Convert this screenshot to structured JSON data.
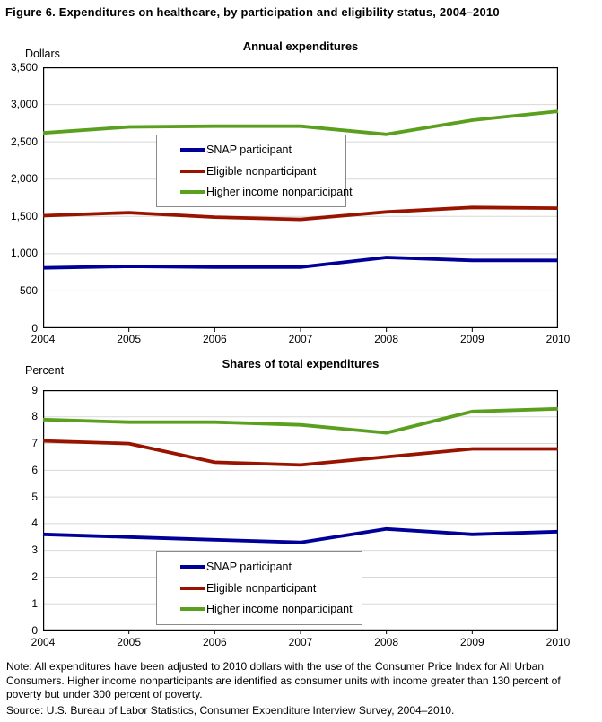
{
  "page": {
    "background": "#FFFFFF",
    "text_color": "#000000"
  },
  "figure_title": "Figure 6. Expenditures on healthcare, by participation and eligibility status, 2004–2010",
  "note": "Note: All expenditures have been adjusted to 2010 dollars with the use of the Consumer Price Index for All Urban Consumers. Higher income nonparticipants are identified as consumer units with income greater than 130 percent of poverty but under 300 percent of poverty.",
  "source": "Source: U.S. Bureau of Labor Statistics, Consumer Expenditure Interview Survey, 2004–2010.",
  "chart_data": [
    {
      "type": "line",
      "title": "Annual expenditures",
      "unit_label": "Dollars",
      "categories": [
        "2004",
        "2005",
        "2006",
        "2007",
        "2008",
        "2009",
        "2010"
      ],
      "ylim": [
        0,
        3500
      ],
      "grid": true,
      "legend_position": "inside-center",
      "axis_color": "#000000",
      "grid_color": "#D8D8D8",
      "yticks": [
        {
          "v": 0,
          "label": "0"
        },
        {
          "v": 500,
          "label": "500"
        },
        {
          "v": 1000,
          "label": "1,000"
        },
        {
          "v": 1500,
          "label": "1,500"
        },
        {
          "v": 2000,
          "label": "2,000"
        },
        {
          "v": 2500,
          "label": "2,500"
        },
        {
          "v": 3000,
          "label": "3,000"
        },
        {
          "v": 3500,
          "label": "3,500"
        }
      ],
      "series": [
        {
          "name": "SNAP participant",
          "color": "#000099",
          "values": [
            810,
            830,
            820,
            820,
            950,
            910,
            910
          ]
        },
        {
          "name": "Eligible nonparticipant",
          "color": "#991400",
          "values": [
            1510,
            1550,
            1490,
            1460,
            1560,
            1620,
            1610
          ]
        },
        {
          "name": "Higher income nonparticipant",
          "color": "#5AA01E",
          "values": [
            2620,
            2700,
            2710,
            2710,
            2600,
            2790,
            2910
          ]
        }
      ]
    },
    {
      "type": "line",
      "title": "Shares of total expenditures",
      "unit_label": "Percent",
      "categories": [
        "2004",
        "2005",
        "2006",
        "2007",
        "2008",
        "2009",
        "2010"
      ],
      "ylim": [
        0,
        9
      ],
      "grid": true,
      "legend_position": "inside-bottom",
      "axis_color": "#000000",
      "grid_color": "#D8D8D8",
      "yticks": [
        {
          "v": 0,
          "label": "0"
        },
        {
          "v": 1,
          "label": "1"
        },
        {
          "v": 2,
          "label": "2"
        },
        {
          "v": 3,
          "label": "3"
        },
        {
          "v": 4,
          "label": "4"
        },
        {
          "v": 5,
          "label": "5"
        },
        {
          "v": 6,
          "label": "6"
        },
        {
          "v": 7,
          "label": "7"
        },
        {
          "v": 8,
          "label": "8"
        },
        {
          "v": 9,
          "label": "9"
        }
      ],
      "series": [
        {
          "name": "SNAP participant",
          "color": "#000099",
          "values": [
            3.6,
            3.5,
            3.4,
            3.3,
            3.8,
            3.6,
            3.7
          ]
        },
        {
          "name": "Eligible nonparticipant",
          "color": "#991400",
          "values": [
            7.1,
            7.0,
            6.3,
            6.2,
            6.5,
            6.8,
            6.8
          ]
        },
        {
          "name": "Higher income nonparticipant",
          "color": "#5AA01E",
          "values": [
            7.9,
            7.8,
            7.8,
            7.7,
            7.4,
            8.2,
            8.3
          ]
        }
      ]
    }
  ]
}
